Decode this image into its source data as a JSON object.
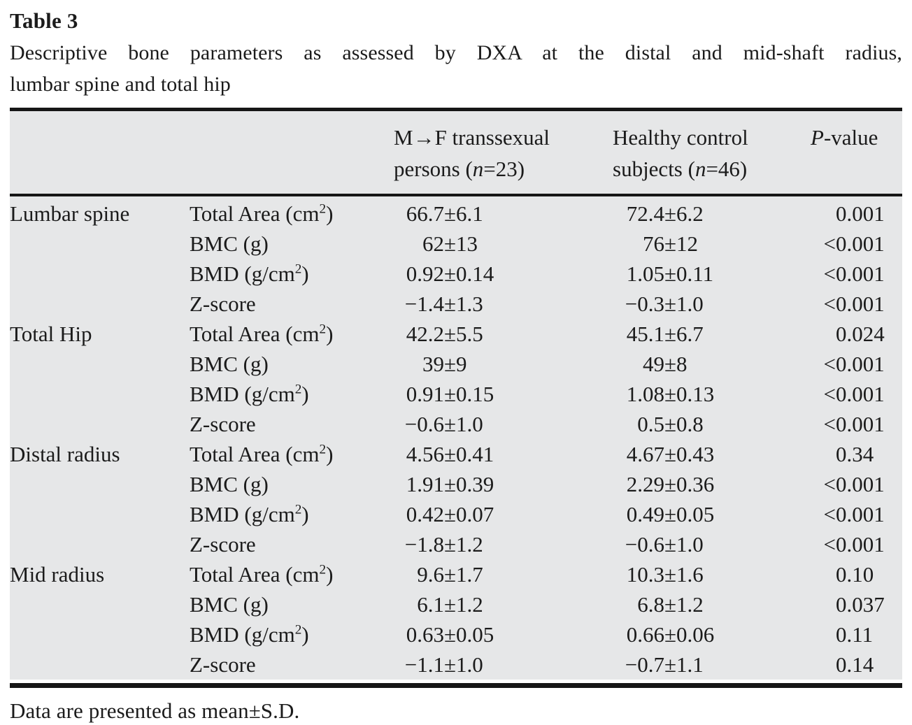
{
  "colors": {
    "table_background": "#e6e7e8",
    "rule": "#161616",
    "text": "#1b1b1b",
    "page_background": "#ffffff"
  },
  "title": "Table 3",
  "caption": {
    "line1": "Descriptive bone parameters as assessed by DXA at the distal and mid-shaft radius,",
    "line2": "lumbar spine and total hip"
  },
  "table": {
    "pm": "±",
    "header": {
      "mtf": {
        "line1": "M→F transsexual",
        "l2a": "persons (",
        "l2n": "n",
        "l2b": "=23)"
      },
      "control": {
        "line1": "Healthy control",
        "l2a": "subjects (",
        "l2n": "n",
        "l2b": "=46)"
      },
      "pvalue": {
        "italic": "P",
        "rest": "-value"
      }
    },
    "sections": [
      {
        "group": "Lumbar spine",
        "rows": [
          {
            "param": {
              "pre": "Total Area (cm",
              "sup": "2",
              "post": ")"
            },
            "mtf": {
              "mean": "66.7",
              "sd": "6.1"
            },
            "control": {
              "mean": "72.4",
              "sd": "6.2"
            },
            "p": {
              "pre": "",
              "val": "0.001"
            }
          },
          {
            "param": {
              "pre": "BMC (g)",
              "sup": "",
              "post": ""
            },
            "mtf": {
              "mean": "62",
              "sd": "13"
            },
            "control": {
              "mean": "76",
              "sd": "12"
            },
            "p": {
              "pre": "<",
              "val": "0.001"
            }
          },
          {
            "param": {
              "pre": "BMD (g/cm",
              "sup": "2",
              "post": ")"
            },
            "mtf": {
              "mean": "0.92",
              "sd": "0.14"
            },
            "control": {
              "mean": "1.05",
              "sd": "0.11"
            },
            "p": {
              "pre": "<",
              "val": "0.001"
            }
          },
          {
            "param": {
              "pre": "Z-score",
              "sup": "",
              "post": ""
            },
            "mtf": {
              "mean": "−1.4",
              "sd": "1.3"
            },
            "control": {
              "mean": "−0.3",
              "sd": "1.0"
            },
            "p": {
              "pre": "<",
              "val": "0.001"
            }
          }
        ]
      },
      {
        "group": "Total Hip",
        "rows": [
          {
            "param": {
              "pre": "Total Area (cm",
              "sup": "2",
              "post": ")"
            },
            "mtf": {
              "mean": "42.2",
              "sd": "5.5"
            },
            "control": {
              "mean": "45.1",
              "sd": "6.7"
            },
            "p": {
              "pre": "",
              "val": "0.024"
            }
          },
          {
            "param": {
              "pre": "BMC (g)",
              "sup": "",
              "post": ""
            },
            "mtf": {
              "mean": "39",
              "sd": "9"
            },
            "control": {
              "mean": "49",
              "sd": "8"
            },
            "p": {
              "pre": "<",
              "val": "0.001"
            }
          },
          {
            "param": {
              "pre": "BMD (g/cm",
              "sup": "2",
              "post": ")"
            },
            "mtf": {
              "mean": "0.91",
              "sd": "0.15"
            },
            "control": {
              "mean": "1.08",
              "sd": "0.13"
            },
            "p": {
              "pre": "<",
              "val": "0.001"
            }
          },
          {
            "param": {
              "pre": "Z-score",
              "sup": "",
              "post": ""
            },
            "mtf": {
              "mean": "−0.6",
              "sd": "1.0"
            },
            "control": {
              "mean": "0.5",
              "sd": "0.8"
            },
            "p": {
              "pre": "<",
              "val": "0.001"
            }
          }
        ]
      },
      {
        "group": "Distal radius",
        "rows": [
          {
            "param": {
              "pre": "Total Area (cm",
              "sup": "2",
              "post": ")"
            },
            "mtf": {
              "mean": "4.56",
              "sd": "0.41"
            },
            "control": {
              "mean": "4.67",
              "sd": "0.43"
            },
            "p": {
              "pre": "",
              "val": "0.34"
            }
          },
          {
            "param": {
              "pre": "BMC (g)",
              "sup": "",
              "post": ""
            },
            "mtf": {
              "mean": "1.91",
              "sd": "0.39"
            },
            "control": {
              "mean": "2.29",
              "sd": "0.36"
            },
            "p": {
              "pre": "<",
              "val": "0.001"
            }
          },
          {
            "param": {
              "pre": "BMD (g/cm",
              "sup": "2",
              "post": ")"
            },
            "mtf": {
              "mean": "0.42",
              "sd": "0.07"
            },
            "control": {
              "mean": "0.49",
              "sd": "0.05"
            },
            "p": {
              "pre": "<",
              "val": "0.001"
            }
          },
          {
            "param": {
              "pre": "Z-score",
              "sup": "",
              "post": ""
            },
            "mtf": {
              "mean": "−1.8",
              "sd": "1.2"
            },
            "control": {
              "mean": "−0.6",
              "sd": "1.0"
            },
            "p": {
              "pre": "<",
              "val": "0.001"
            }
          }
        ]
      },
      {
        "group": "Mid radius",
        "rows": [
          {
            "param": {
              "pre": "Total Area (cm",
              "sup": "2",
              "post": ")"
            },
            "mtf": {
              "mean": "9.6",
              "sd": "1.7"
            },
            "control": {
              "mean": "10.3",
              "sd": "1.6"
            },
            "p": {
              "pre": "",
              "val": "0.10"
            }
          },
          {
            "param": {
              "pre": "BMC (g)",
              "sup": "",
              "post": ""
            },
            "mtf": {
              "mean": "6.1",
              "sd": "1.2"
            },
            "control": {
              "mean": "6.8",
              "sd": "1.2"
            },
            "p": {
              "pre": "",
              "val": "0.037"
            }
          },
          {
            "param": {
              "pre": "BMD (g/cm",
              "sup": "2",
              "post": ")"
            },
            "mtf": {
              "mean": "0.63",
              "sd": "0.05"
            },
            "control": {
              "mean": "0.66",
              "sd": "0.06"
            },
            "p": {
              "pre": "",
              "val": "0.11"
            }
          },
          {
            "param": {
              "pre": "Z-score",
              "sup": "",
              "post": ""
            },
            "mtf": {
              "mean": "−1.1",
              "sd": "1.0"
            },
            "control": {
              "mean": "−0.7",
              "sd": "1.1"
            },
            "p": {
              "pre": "",
              "val": "0.14"
            }
          }
        ]
      }
    ]
  },
  "footnote": "Data are presented as mean±S.D."
}
